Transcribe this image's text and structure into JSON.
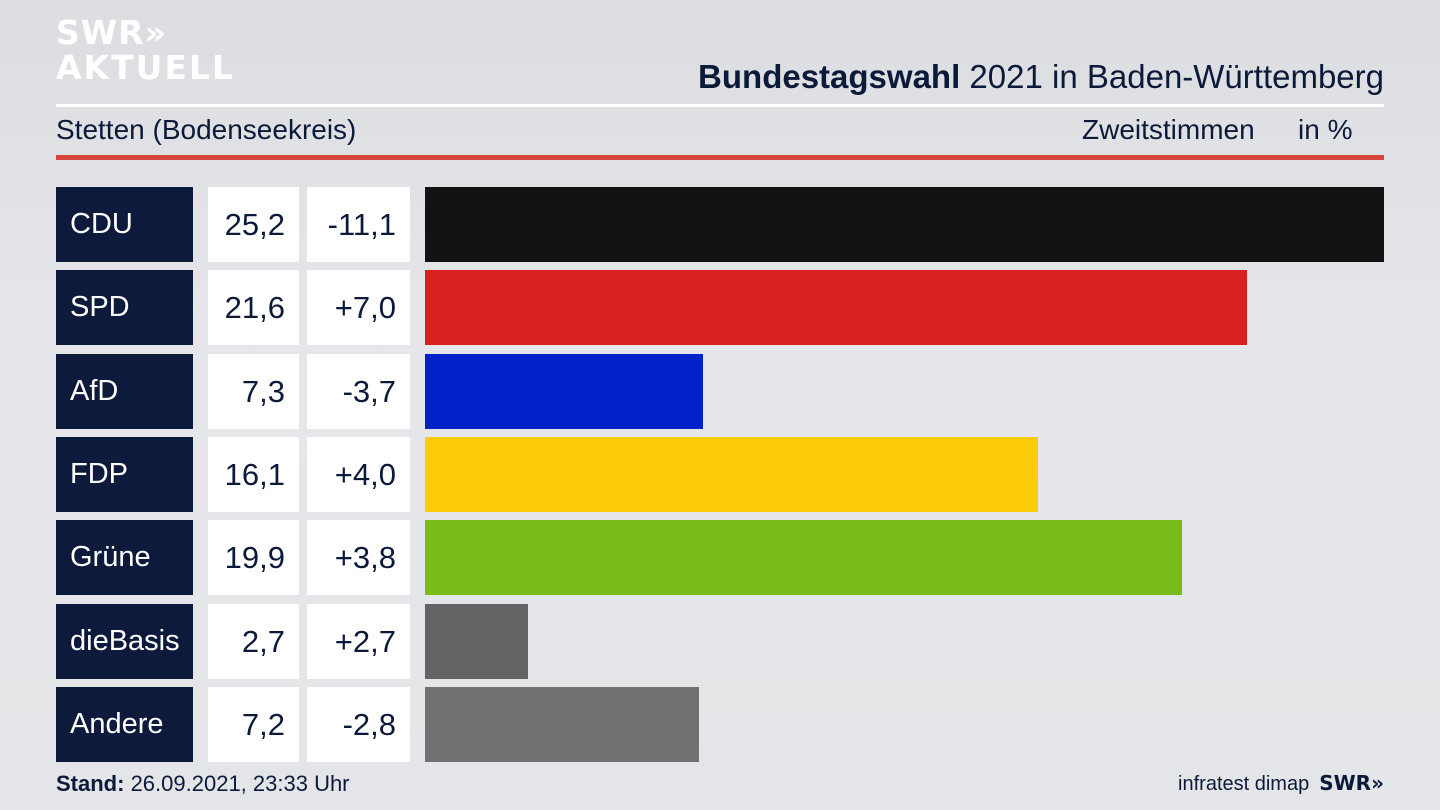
{
  "brand": {
    "logo_line1": "SWR»",
    "logo_line2": "AKTUELL",
    "footer_logo": "SWR»",
    "source": "infratest dimap"
  },
  "header": {
    "title_bold": "Bundestagswahl",
    "title_rest": " 2021 in Baden-Württemberg",
    "region": "Stetten (Bodenseekreis)",
    "measure": "Zweitstimmen",
    "unit": "in %"
  },
  "footer": {
    "stand_label": "Stand:",
    "stand_value": " 26.09.2021, 23:33 Uhr"
  },
  "chart_data": {
    "type": "bar",
    "categories": [
      "CDU",
      "SPD",
      "AfD",
      "FDP",
      "Grüne",
      "dieBasis",
      "Andere"
    ],
    "values": [
      25.2,
      21.6,
      7.3,
      16.1,
      19.9,
      2.7,
      7.2
    ],
    "value_labels": [
      "25,2",
      "21,6",
      "7,3",
      "16,1",
      "19,9",
      "2,7",
      "7,2"
    ],
    "changes": [
      -11.1,
      7.0,
      -3.7,
      4.0,
      3.8,
      2.7,
      -2.8
    ],
    "change_labels": [
      "-11,1",
      "+7,0",
      "-3,7",
      "+4,0",
      "+3,8",
      "+2,7",
      "-2,8"
    ],
    "colors": [
      "#121212",
      "#d8201f",
      "#0022c8",
      "#fdcc0a",
      "#78bc1c",
      "#646464",
      "#717171"
    ],
    "orientation": "horizontal",
    "xlim": [
      0,
      25.2
    ],
    "grid": false,
    "legend": "none"
  }
}
